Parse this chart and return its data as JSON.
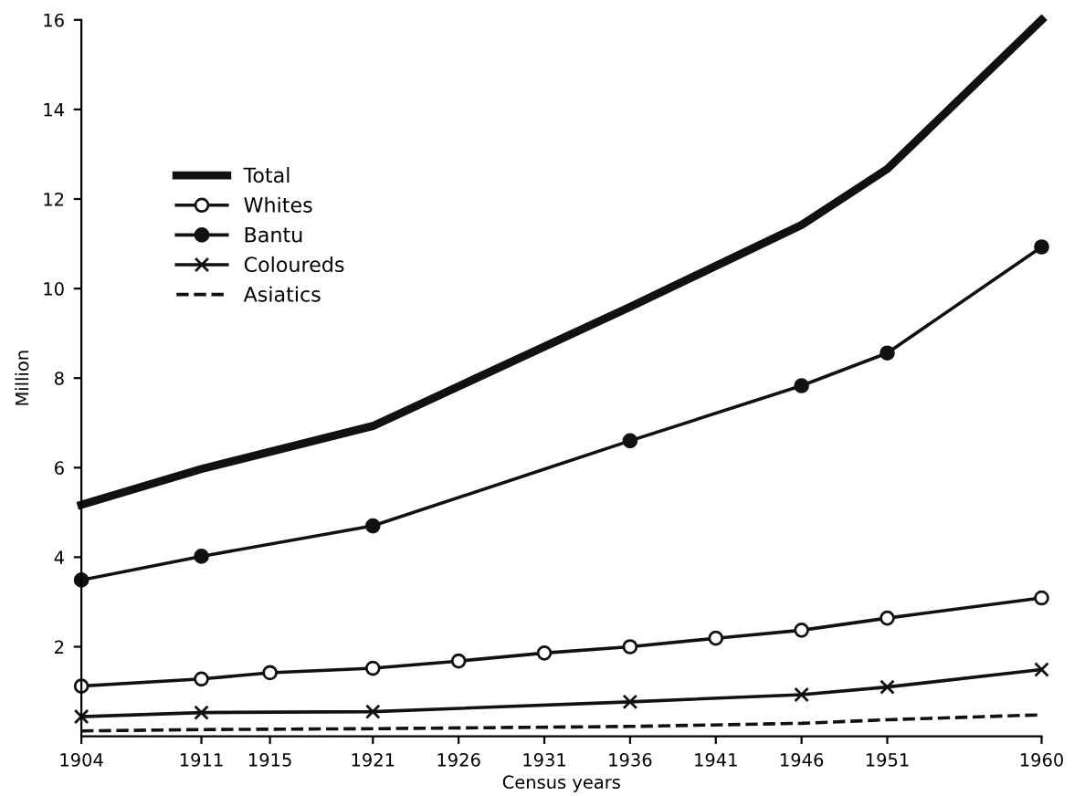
{
  "chart_data": {
    "type": "line",
    "xlabel": "Census years",
    "ylabel": "Million",
    "xlim": [
      1904,
      1960
    ],
    "xticks": [
      1904,
      1911,
      1915,
      1921,
      1926,
      1931,
      1936,
      1941,
      1946,
      1951,
      1960
    ],
    "ylim": [
      0,
      16
    ],
    "yticks": [
      2,
      4,
      6,
      8,
      10,
      12,
      14,
      16
    ],
    "grid": false,
    "legend": "top left",
    "series": [
      {
        "name": "Total",
        "color": "#111111",
        "marker": "none",
        "line_style": "solid",
        "x": [
          1904,
          1911,
          1921,
          1936,
          1946,
          1951,
          1960
        ],
        "values": [
          5.17,
          5.97,
          6.93,
          9.59,
          11.42,
          12.67,
          16.0
        ]
      },
      {
        "name": "Whites",
        "color": "#111111",
        "marker": "circle",
        "line_style": "solid",
        "x": [
          1904,
          1911,
          1915,
          1921,
          1926,
          1931,
          1936,
          1941,
          1946,
          1951,
          1960
        ],
        "values": [
          1.12,
          1.28,
          1.42,
          1.52,
          1.68,
          1.86,
          2.0,
          2.19,
          2.37,
          2.64,
          3.09
        ]
      },
      {
        "name": "Bantu",
        "color": "#111111",
        "marker": "circle",
        "line_style": "solid",
        "x": [
          1904,
          1911,
          1921,
          1936,
          1946,
          1951,
          1960
        ],
        "values": [
          3.49,
          4.02,
          4.7,
          6.6,
          7.83,
          8.56,
          10.93
        ]
      },
      {
        "name": "Coloureds",
        "color": "#111111",
        "marker": "cross",
        "line_style": "solid",
        "x": [
          1904,
          1911,
          1921,
          1936,
          1946,
          1951,
          1960
        ],
        "values": [
          0.44,
          0.53,
          0.55,
          0.77,
          0.93,
          1.1,
          1.49
        ]
      },
      {
        "name": "Asiatics",
        "color": "#111111",
        "marker": "none",
        "line_style": "dashed",
        "x": [
          1904,
          1911,
          1921,
          1936,
          1946,
          1951,
          1960
        ],
        "values": [
          0.12,
          0.15,
          0.17,
          0.22,
          0.29,
          0.37,
          0.48
        ]
      }
    ]
  }
}
